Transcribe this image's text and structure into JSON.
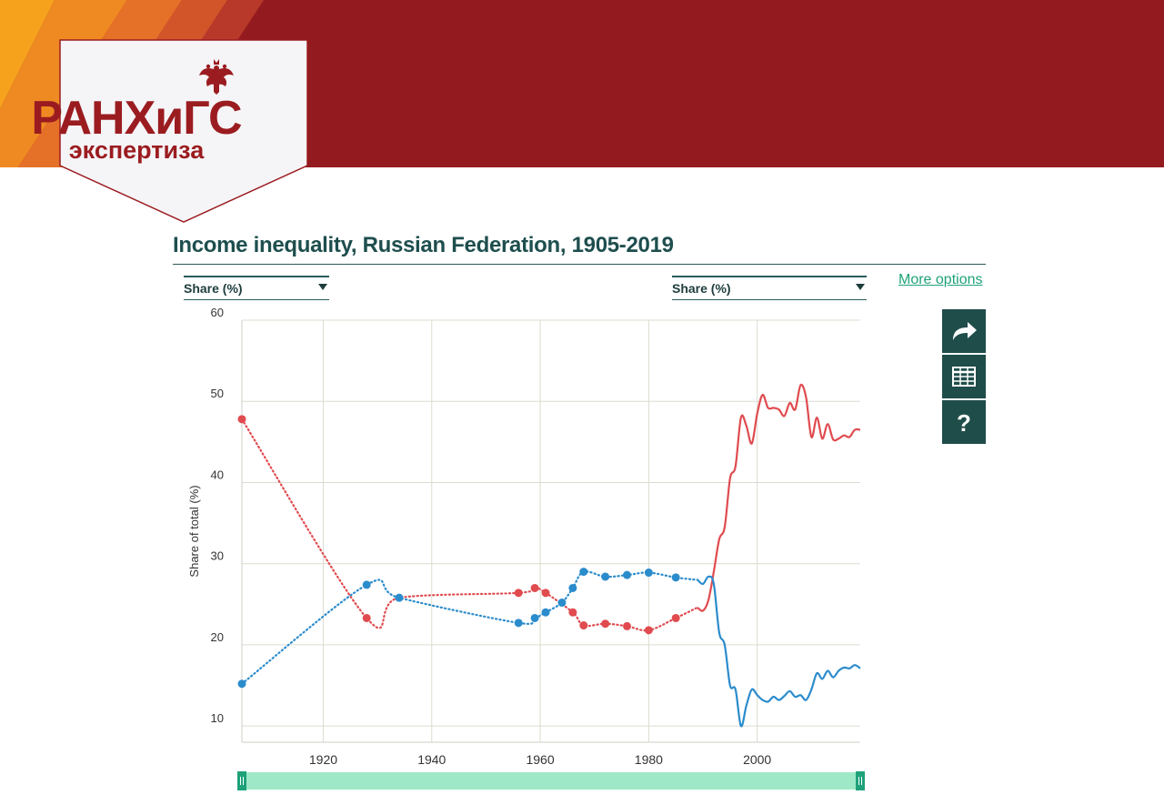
{
  "logo": {
    "line1": "РАНХиГС",
    "line2": "экспертиза",
    "brand_color": "#9b1c20",
    "banner_color": "#931a1e",
    "icon": "double-headed-eagle-icon"
  },
  "header": {
    "title": "Income inequality, Russian Federation, 1905-2019",
    "more_options": "More options"
  },
  "selectors": {
    "left": {
      "value": "Share (%)"
    },
    "right": {
      "value": "Share (%)"
    }
  },
  "toolbar": {
    "share_icon": "share-arrow-icon",
    "table_icon": "table-grid-icon",
    "help_icon": "question-mark-icon",
    "help_glyph": "?"
  },
  "chart_data": {
    "type": "line",
    "title": "Income inequality, Russian Federation, 1905-2019",
    "ylabel": "Share of total (%)",
    "xlabel": "",
    "xlim": [
      1905,
      2019
    ],
    "ylim": [
      8,
      60
    ],
    "x_ticks": [
      1920,
      1940,
      1960,
      1980,
      2000
    ],
    "y_ticks": [
      10,
      20,
      30,
      40,
      50,
      60
    ],
    "grid": true,
    "legend": "none",
    "range_slider": {
      "start": 1905,
      "end": 2019
    },
    "series": [
      {
        "color": "#e04b4f",
        "dotted_points": [
          [
            1905,
            47.8
          ],
          [
            1928,
            23.3
          ],
          [
            1934,
            25.8
          ],
          [
            1956,
            26.4
          ],
          [
            1959,
            27.0
          ],
          [
            1961,
            26.4
          ],
          [
            1966,
            24.0
          ],
          [
            1968,
            22.4
          ],
          [
            1972,
            22.6
          ],
          [
            1976,
            22.3
          ],
          [
            1980,
            21.8
          ],
          [
            1985,
            23.3
          ],
          [
            1989,
            24.6
          ]
        ],
        "solid_points": [
          [
            1989,
            24.6
          ],
          [
            1990,
            24.2
          ],
          [
            1991,
            25.5
          ],
          [
            1992,
            29.0
          ],
          [
            1993,
            33.0
          ],
          [
            1994,
            34.5
          ],
          [
            1995,
            40.5
          ],
          [
            1996,
            42.0
          ],
          [
            1997,
            48.0
          ],
          [
            1998,
            47.0
          ],
          [
            1999,
            44.8
          ],
          [
            2000,
            48.5
          ],
          [
            2001,
            50.8
          ],
          [
            2002,
            49.2
          ],
          [
            2003,
            49.2
          ],
          [
            2004,
            49.0
          ],
          [
            2005,
            48.2
          ],
          [
            2006,
            49.8
          ],
          [
            2007,
            49.0
          ],
          [
            2008,
            52.0
          ],
          [
            2009,
            50.5
          ],
          [
            2010,
            45.6
          ],
          [
            2011,
            48.0
          ],
          [
            2012,
            45.4
          ],
          [
            2013,
            47.2
          ],
          [
            2014,
            45.3
          ],
          [
            2015,
            45.4
          ],
          [
            2016,
            45.8
          ],
          [
            2017,
            45.6
          ],
          [
            2018,
            46.5
          ],
          [
            2019,
            46.5
          ]
        ],
        "markers": [
          [
            1905,
            47.8
          ],
          [
            1928,
            23.3
          ],
          [
            1956,
            26.4
          ],
          [
            1959,
            27.0
          ],
          [
            1961,
            26.4
          ],
          [
            1966,
            24.0
          ],
          [
            1968,
            22.4
          ],
          [
            1972,
            22.6
          ],
          [
            1976,
            22.3
          ],
          [
            1980,
            21.8
          ],
          [
            1985,
            23.3
          ]
        ]
      },
      {
        "color": "#2b8ccc",
        "dotted_points": [
          [
            1905,
            15.2
          ],
          [
            1928,
            27.4
          ],
          [
            1934,
            25.8
          ],
          [
            1956,
            22.7
          ],
          [
            1959,
            23.3
          ],
          [
            1961,
            24.0
          ],
          [
            1964,
            25.2
          ],
          [
            1966,
            27.0
          ],
          [
            1968,
            29.0
          ],
          [
            1972,
            28.4
          ],
          [
            1976,
            28.6
          ],
          [
            1980,
            28.9
          ],
          [
            1985,
            28.3
          ],
          [
            1989,
            28.0
          ]
        ],
        "solid_points": [
          [
            1989,
            28.0
          ],
          [
            1990,
            27.5
          ],
          [
            1991,
            28.4
          ],
          [
            1992,
            27.5
          ],
          [
            1993,
            21.5
          ],
          [
            1994,
            20.0
          ],
          [
            1995,
            15.0
          ],
          [
            1996,
            14.5
          ],
          [
            1997,
            10.0
          ],
          [
            1998,
            12.5
          ],
          [
            1999,
            14.5
          ],
          [
            2000,
            13.8
          ],
          [
            2001,
            13.2
          ],
          [
            2002,
            13.0
          ],
          [
            2003,
            13.6
          ],
          [
            2004,
            13.2
          ],
          [
            2005,
            13.7
          ],
          [
            2006,
            14.3
          ],
          [
            2007,
            13.6
          ],
          [
            2008,
            13.8
          ],
          [
            2009,
            13.2
          ],
          [
            2010,
            14.5
          ],
          [
            2011,
            16.5
          ],
          [
            2012,
            15.8
          ],
          [
            2013,
            16.8
          ],
          [
            2014,
            16.0
          ],
          [
            2015,
            16.8
          ],
          [
            2016,
            17.2
          ],
          [
            2017,
            17.1
          ],
          [
            2018,
            17.5
          ],
          [
            2019,
            17.1
          ]
        ],
        "markers": [
          [
            1905,
            15.2
          ],
          [
            1928,
            27.4
          ],
          [
            1934,
            25.8
          ],
          [
            1956,
            22.7
          ],
          [
            1959,
            23.3
          ],
          [
            1961,
            24.0
          ],
          [
            1964,
            25.2
          ],
          [
            1966,
            27.0
          ],
          [
            1968,
            29.0
          ],
          [
            1972,
            28.4
          ],
          [
            1976,
            28.6
          ],
          [
            1980,
            28.9
          ],
          [
            1985,
            28.3
          ]
        ]
      }
    ]
  }
}
